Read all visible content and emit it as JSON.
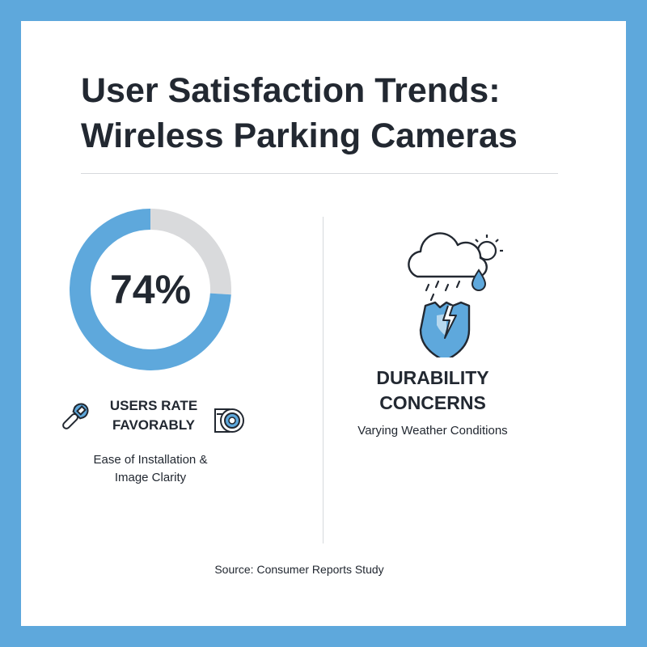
{
  "title": {
    "line1": "User Satisfaction Trends:",
    "line2": "Wireless Parking Cameras"
  },
  "chart_data": {
    "type": "pie",
    "values": [
      74,
      26
    ],
    "unit": "%",
    "center_label": "74%",
    "colors": {
      "favorable": "#5ea8dc",
      "remainder": "#d9dadc"
    }
  },
  "favorable": {
    "heading_line1": "USERS RATE",
    "heading_line2": "FAVORABLY",
    "sub_line1": "Ease of Installation &",
    "sub_line2": "Image Clarity",
    "icons": [
      "wrench-icon",
      "camera-lens-icon"
    ]
  },
  "concern": {
    "heading_line1": "DURABILITY",
    "heading_line2": "CONCERNS",
    "sub": "Varying Weather Conditions",
    "icons": [
      "storm-cloud-sun-icon",
      "cracked-shield-icon"
    ]
  },
  "source": "Source: Consumer Reports Study",
  "colors": {
    "border": "#5ea8dc",
    "text": "#222831",
    "divider": "#d6d9dd"
  }
}
